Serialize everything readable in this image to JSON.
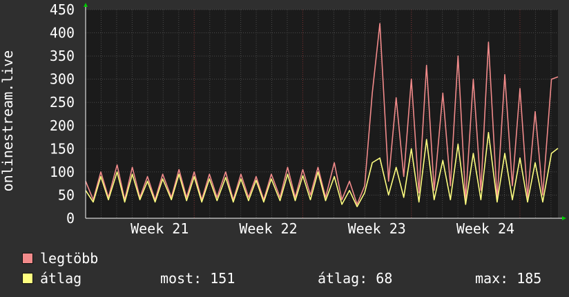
{
  "colors": {
    "background": "#2f2f2f",
    "plot_background": "#1b1b1b",
    "grid": "#4a4a4a",
    "grid_major": "#7a2d2d",
    "max_series": "#f28b8b",
    "avg_series": "#ffff80",
    "text": "#ffffff",
    "axis_arrow": "#00cc00"
  },
  "legend": {
    "max_label": "legtöbb",
    "avg_label": "átlag",
    "stats": {
      "current": "most: 151",
      "average": "átlag: 68",
      "maximum": "max: 185"
    }
  },
  "chart_data": {
    "type": "line",
    "ylabel": "onlinestream.live",
    "xlabel": "",
    "title": "",
    "ylim": [
      0,
      450
    ],
    "yticks": [
      0,
      50,
      100,
      150,
      200,
      250,
      300,
      350,
      400,
      450
    ],
    "xlim": [
      0,
      4.35
    ],
    "week_ticks": [
      {
        "label": "Week 21",
        "x": 1
      },
      {
        "label": "Week 22",
        "x": 2
      },
      {
        "label": "Week 23",
        "x": 3
      },
      {
        "label": "Week 24",
        "x": 4
      }
    ],
    "grid": true,
    "series": [
      {
        "name": "legtöbb",
        "x": [
          0,
          0.07,
          0.14,
          0.21,
          0.29,
          0.36,
          0.43,
          0.5,
          0.57,
          0.64,
          0.71,
          0.79,
          0.86,
          0.93,
          1.0,
          1.07,
          1.14,
          1.21,
          1.29,
          1.36,
          1.43,
          1.5,
          1.57,
          1.64,
          1.71,
          1.79,
          1.86,
          1.93,
          2.0,
          2.07,
          2.14,
          2.21,
          2.29,
          2.36,
          2.43,
          2.5,
          2.57,
          2.64,
          2.71,
          2.79,
          2.86,
          2.93,
          3.0,
          3.07,
          3.14,
          3.21,
          3.29,
          3.36,
          3.43,
          3.5,
          3.57,
          3.64,
          3.71,
          3.79,
          3.86,
          3.93,
          4.0,
          4.07,
          4.14,
          4.21,
          4.29,
          4.35
        ],
        "values": [
          80,
          40,
          100,
          45,
          115,
          40,
          110,
          45,
          90,
          40,
          95,
          45,
          105,
          45,
          100,
          40,
          95,
          45,
          100,
          40,
          95,
          45,
          90,
          40,
          95,
          45,
          110,
          45,
          105,
          50,
          110,
          45,
          120,
          40,
          80,
          30,
          70,
          270,
          420,
          80,
          260,
          90,
          300,
          55,
          330,
          60,
          270,
          70,
          350,
          40,
          300,
          60,
          380,
          40,
          310,
          70,
          280,
          45,
          230,
          50,
          300,
          305
        ]
      },
      {
        "name": "átlag",
        "x": [
          0,
          0.07,
          0.14,
          0.21,
          0.29,
          0.36,
          0.43,
          0.5,
          0.57,
          0.64,
          0.71,
          0.79,
          0.86,
          0.93,
          1.0,
          1.07,
          1.14,
          1.21,
          1.29,
          1.36,
          1.43,
          1.5,
          1.57,
          1.64,
          1.71,
          1.79,
          1.86,
          1.93,
          2.0,
          2.07,
          2.14,
          2.21,
          2.29,
          2.36,
          2.43,
          2.5,
          2.57,
          2.64,
          2.71,
          2.79,
          2.86,
          2.93,
          3.0,
          3.07,
          3.14,
          3.21,
          3.29,
          3.36,
          3.43,
          3.5,
          3.57,
          3.64,
          3.71,
          3.79,
          3.86,
          3.93,
          4.0,
          4.07,
          4.14,
          4.21,
          4.29,
          4.35
        ],
        "values": [
          60,
          35,
          90,
          40,
          100,
          35,
          95,
          40,
          80,
          35,
          85,
          40,
          95,
          38,
          90,
          35,
          85,
          38,
          88,
          35,
          85,
          38,
          82,
          35,
          85,
          38,
          95,
          38,
          92,
          40,
          100,
          38,
          90,
          30,
          60,
          25,
          55,
          120,
          130,
          50,
          110,
          45,
          150,
          35,
          170,
          40,
          125,
          40,
          160,
          30,
          140,
          40,
          185,
          35,
          140,
          40,
          130,
          35,
          120,
          35,
          140,
          151
        ]
      }
    ]
  }
}
